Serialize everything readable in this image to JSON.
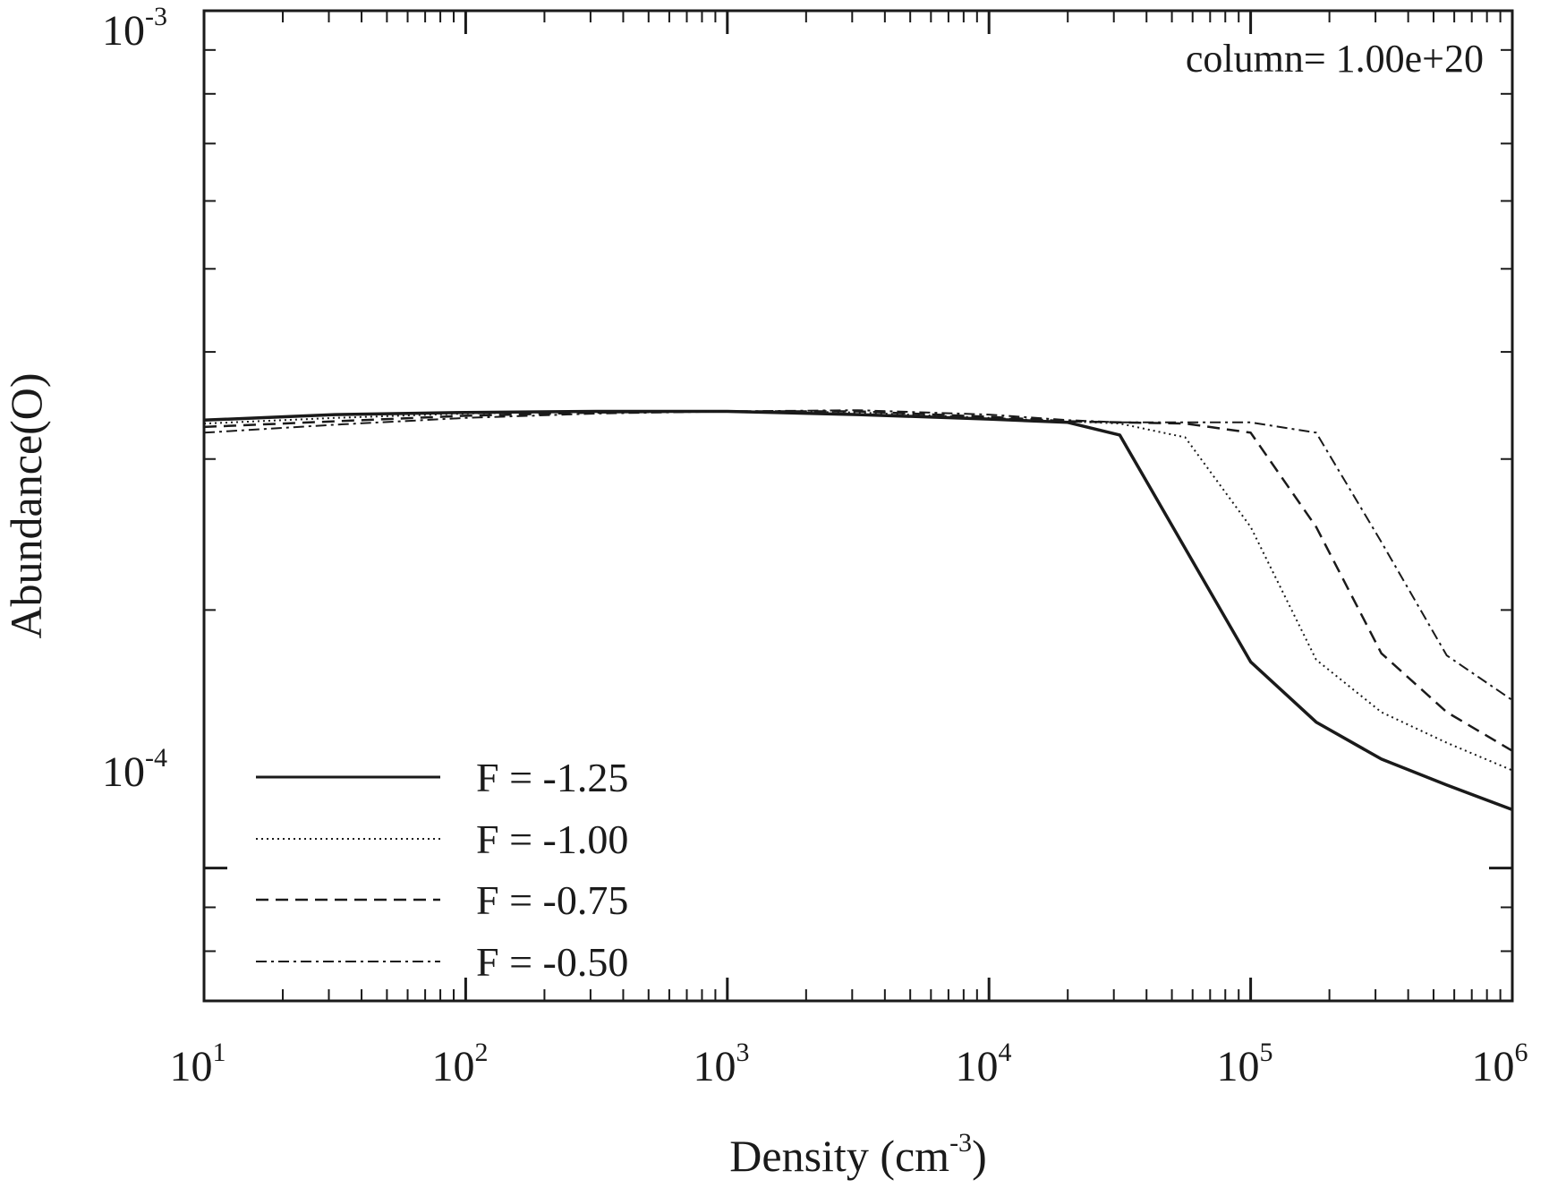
{
  "chart_data": {
    "type": "line",
    "title": "",
    "annotation": "column= 1.00e+20",
    "xlabel_main": "Density (cm",
    "xlabel_exp": "-3",
    "xlabel_close": ")",
    "ylabel": "Abundance(O)",
    "xscale": "log",
    "yscale": "log",
    "xlim": [
      10,
      1000000
    ],
    "ylim": [
      7e-05,
      0.001
    ],
    "xticks": [
      {
        "base": "10",
        "exp": "1",
        "value": 10
      },
      {
        "base": "10",
        "exp": "2",
        "value": 100
      },
      {
        "base": "10",
        "exp": "3",
        "value": 1000
      },
      {
        "base": "10",
        "exp": "4",
        "value": 10000
      },
      {
        "base": "10",
        "exp": "5",
        "value": 100000
      },
      {
        "base": "10",
        "exp": "6",
        "value": 1000000
      }
    ],
    "yticks": [
      {
        "base": "10",
        "exp": "-4",
        "value": 0.0001
      },
      {
        "base": "10",
        "exp": "-3",
        "value": 0.001
      }
    ],
    "legend_position": "bottom-left",
    "series": [
      {
        "name": "F = -1.25",
        "style": "solid",
        "x": [
          10,
          31.6,
          100,
          316,
          1000,
          3160,
          10000,
          20000,
          31600,
          100000,
          178000,
          316000,
          562000,
          1000000
        ],
        "y": [
          0.000333,
          0.000338,
          0.00034,
          0.000341,
          0.000341,
          0.000338,
          0.000334,
          0.000331,
          0.00032,
          0.000174,
          0.000148,
          0.000134,
          0.000125,
          0.000117
        ]
      },
      {
        "name": "F = -1.00",
        "style": "dotted",
        "x": [
          10,
          31.6,
          100,
          316,
          1000,
          3160,
          10000,
          20000,
          31600,
          56200,
          100000,
          178000,
          316000,
          562000,
          1000000
        ],
        "y": [
          0.00033,
          0.000335,
          0.000339,
          0.000341,
          0.000341,
          0.00034,
          0.000335,
          0.000332,
          0.00033,
          0.000318,
          0.00025,
          0.000175,
          0.000152,
          0.00014,
          0.00013
        ]
      },
      {
        "name": "F = -0.75",
        "style": "dashed",
        "x": [
          10,
          31.6,
          100,
          316,
          1000,
          3160,
          10000,
          20000,
          31600,
          56200,
          100000,
          178000,
          316000,
          562000,
          1000000
        ],
        "y": [
          0.000327,
          0.000332,
          0.000337,
          0.00034,
          0.000341,
          0.000341,
          0.000336,
          0.000332,
          0.000331,
          0.00033,
          0.000322,
          0.00025,
          0.000178,
          0.000152,
          0.000137
        ]
      },
      {
        "name": "F = -0.50",
        "style": "dashdot",
        "x": [
          10,
          31.6,
          100,
          316,
          1000,
          3160,
          10000,
          20000,
          31600,
          56200,
          100000,
          178000,
          316000,
          562000,
          1000000
        ],
        "y": [
          0.000322,
          0.000329,
          0.000335,
          0.000339,
          0.000341,
          0.000342,
          0.000338,
          0.000333,
          0.000331,
          0.000331,
          0.000331,
          0.000322,
          0.00024,
          0.000177,
          0.000157
        ]
      }
    ]
  }
}
